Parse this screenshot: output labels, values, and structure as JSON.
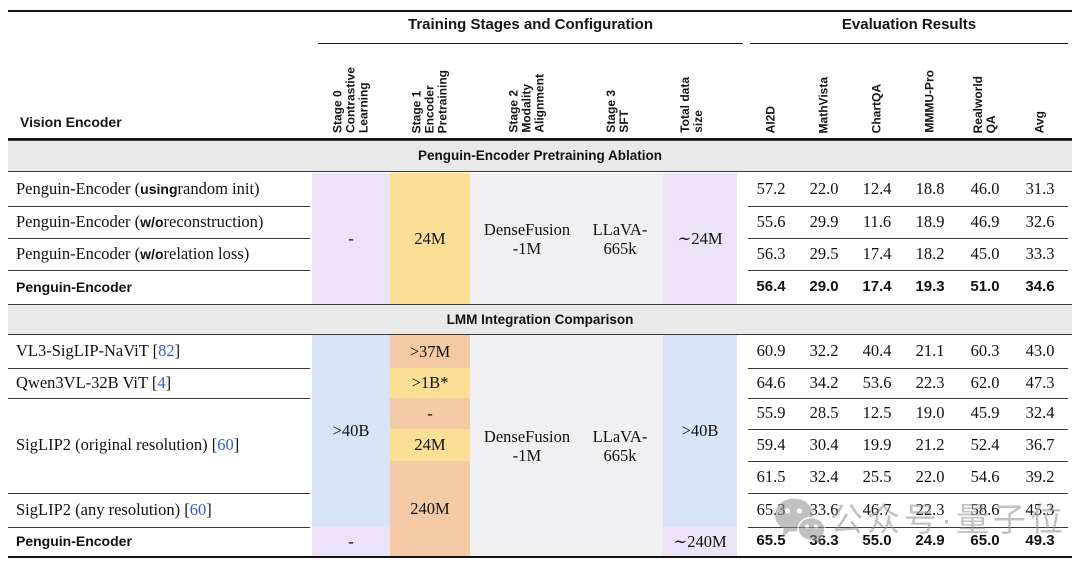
{
  "colors": {
    "lavender": "#ece3f8",
    "yellow": "#fbdf95",
    "orange": "#f4c9a3",
    "blue": "#d7e4f7",
    "cell_gray": "#f0f0f3",
    "band_gray": "#e9e9e9",
    "citation_blue": "#2b5fd9",
    "watermark_gray": "#8f8f8f"
  },
  "table": {
    "group_headers": {
      "training": "Training Stages and Configuration",
      "evaluation": "Evaluation Results"
    },
    "corner_label": "Vision Encoder",
    "training_columns": [
      "Stage 0\nContrastive\nLearning",
      "Stage 1\nEncoder\nPretraining",
      "Stage 2\nModality\nAlignment",
      "Stage 3\nSFT",
      "Total data\nsize"
    ],
    "eval_columns": [
      "AI2D",
      "MathVista",
      "ChartQA",
      "MMMU-Pro",
      "Realworld\nQA",
      "Avg"
    ],
    "sections": [
      {
        "title": "Penguin-Encoder Pretraining Ablation",
        "cells": [
          {
            "col": "stage0",
            "span": [
              0,
              4
            ],
            "text": "-",
            "color": "lavender"
          },
          {
            "col": "stage1",
            "span": [
              0,
              4
            ],
            "text": "24M",
            "color": "yellow"
          },
          {
            "col": "stage23",
            "span": [
              0,
              4
            ],
            "color": "cell_gray",
            "texts": [
              "DenseFusion\n-1M",
              "LLaVA-\n665k"
            ]
          },
          {
            "col": "total",
            "span": [
              0,
              4
            ],
            "text": "∼24M",
            "color": "lavender"
          }
        ],
        "rows": [
          {
            "label": [
              {
                "t": "Penguin-Encoder ("
              },
              {
                "t": "using",
                "b": true
              },
              {
                "t": " random init)"
              }
            ],
            "results": [
              "57.2",
              "22.0",
              "12.4",
              "18.8",
              "46.0",
              "31.3"
            ]
          },
          {
            "label": [
              {
                "t": "Penguin-Encoder ("
              },
              {
                "t": "w/o",
                "b": true
              },
              {
                "t": " reconstruction)"
              }
            ],
            "results": [
              "55.6",
              "29.9",
              "11.6",
              "18.9",
              "46.9",
              "32.6"
            ]
          },
          {
            "label": [
              {
                "t": "Penguin-Encoder ("
              },
              {
                "t": "w/o",
                "b": true
              },
              {
                "t": " relation loss)"
              }
            ],
            "results": [
              "56.3",
              "29.5",
              "17.4",
              "18.2",
              "45.0",
              "33.3"
            ]
          },
          {
            "label": [
              {
                "t": "Penguin-Encoder"
              }
            ],
            "bold": true,
            "results": [
              "56.4",
              "29.0",
              "17.4",
              "19.3",
              "51.0",
              "34.6"
            ]
          }
        ]
      },
      {
        "title": "LMM Integration Comparison",
        "cells": [
          {
            "col": "stage0",
            "span": [
              0,
              6
            ],
            "text": ">40B",
            "color": "blue"
          },
          {
            "col": "stage0",
            "span": [
              6,
              7
            ],
            "text": "-",
            "color": "lavender"
          },
          {
            "col": "stage1",
            "span": [
              0,
              1
            ],
            "text": ">37M",
            "color": "orange"
          },
          {
            "col": "stage1",
            "span": [
              1,
              2
            ],
            "text": ">1B*",
            "color": "yellow"
          },
          {
            "col": "stage1",
            "span": [
              2,
              3
            ],
            "text": "-",
            "color": "orange"
          },
          {
            "col": "stage1",
            "span": [
              3,
              4
            ],
            "text": "24M",
            "color": "yellow"
          },
          {
            "col": "stage1",
            "span": [
              4,
              7
            ],
            "text": "240M",
            "color": "orange"
          },
          {
            "col": "stage23",
            "span": [
              0,
              7
            ],
            "color": "cell_gray",
            "texts": [
              "DenseFusion\n-1M",
              "LLaVA-\n665k"
            ]
          },
          {
            "col": "total",
            "span": [
              0,
              6
            ],
            "text": ">40B",
            "color": "blue"
          },
          {
            "col": "total",
            "span": [
              6,
              7
            ],
            "text": "∼240M",
            "color": "lavender"
          }
        ],
        "rows": [
          {
            "label": [
              {
                "t": "VL3-SigLIP-NaViT ["
              },
              {
                "t": "82",
                "cite": true
              },
              {
                "t": "]"
              }
            ],
            "results": [
              "60.9",
              "32.2",
              "40.4",
              "21.1",
              "60.3",
              "43.0"
            ]
          },
          {
            "label": [
              {
                "t": "Qwen3VL-32B ViT ["
              },
              {
                "t": "4",
                "cite": true
              },
              {
                "t": "]"
              }
            ],
            "results": [
              "64.6",
              "34.2",
              "53.6",
              "22.3",
              "62.0",
              "47.3"
            ]
          },
          {
            "label": [
              {
                "t": "SigLIP2 (original resolution) ["
              },
              {
                "t": "60",
                "cite": true
              },
              {
                "t": "]"
              }
            ],
            "label_span": [
              2,
              5
            ],
            "results": [
              "55.9",
              "28.5",
              "12.5",
              "19.0",
              "45.9",
              "32.4"
            ]
          },
          {
            "label": null,
            "results": [
              "59.4",
              "30.4",
              "19.9",
              "21.2",
              "52.4",
              "36.7"
            ]
          },
          {
            "label": null,
            "results": [
              "61.5",
              "32.4",
              "25.5",
              "22.0",
              "54.6",
              "39.2"
            ]
          },
          {
            "label": [
              {
                "t": "SigLIP2 (any resolution) ["
              },
              {
                "t": "60",
                "cite": true
              },
              {
                "t": "]"
              }
            ],
            "results": [
              "65.3",
              "33.6",
              "46.7",
              "22.3",
              "58.6",
              "45.3"
            ]
          },
          {
            "label": [
              {
                "t": "Penguin-Encoder"
              }
            ],
            "bold": true,
            "results": [
              "65.5",
              "36.3",
              "55.0",
              "24.9",
              "65.0",
              "49.3"
            ]
          }
        ]
      }
    ]
  },
  "watermark": {
    "icon": "wechat-icon",
    "text": "公众号·量子位"
  }
}
